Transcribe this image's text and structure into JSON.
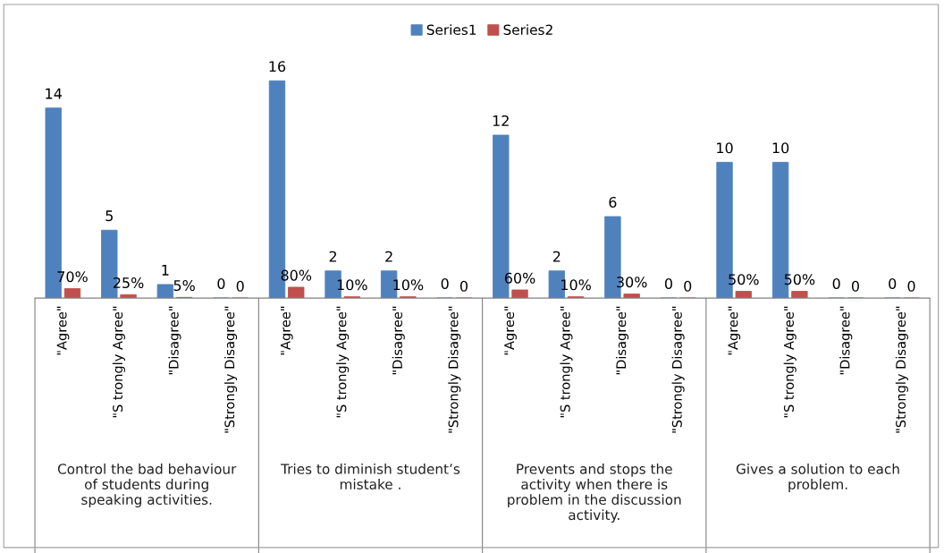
{
  "chart_data": {
    "type": "bar",
    "categories": [
      "\"Agree\"",
      "\"S trongly Agree\"",
      "\"Disagree\"",
      "\"Strongly Disagree\"",
      "\"Agree\"",
      "\"S trongly Agree\"",
      "\"Disagree\"",
      "\"Strongly Disagree\"",
      "\"Agree\"",
      "\"S trongly Agree\"",
      "\"Disagree\"",
      "\"Strongly Disagree\"",
      "\"Agree\"",
      "\"S trongly Agree\"",
      "\"Disagree\"",
      "\"Strongly Disagree\""
    ],
    "series": [
      {
        "name": "Series1",
        "color": "#4f81bd",
        "values": [
          14,
          5,
          1,
          0,
          16,
          2,
          2,
          0,
          12,
          2,
          6,
          0,
          10,
          10,
          0,
          0
        ],
        "value_labels": [
          "14",
          "5",
          "1",
          "0",
          "16",
          "2",
          "2",
          "0",
          "12",
          "2",
          "6",
          "0",
          "10",
          "10",
          "0",
          "0"
        ]
      },
      {
        "name": "Series2",
        "color": "#c0504d",
        "values": [
          0.7,
          0.25,
          0.05,
          0,
          0.8,
          0.1,
          0.1,
          0,
          0.6,
          0.1,
          0.3,
          0,
          0.5,
          0.5,
          0,
          0
        ],
        "value_labels": [
          "70%",
          "25%",
          "5%",
          "0",
          "80%",
          "10%",
          "10%",
          "0",
          "60%",
          "10%",
          "30%",
          "0",
          "50%",
          "50%",
          "0",
          "0"
        ]
      }
    ],
    "annotations": [
      "Control the bad behaviour\nof students during\nspeaking activities.",
      "Tries to diminish student’s\nmistake .",
      "Prevents and stops the\nactivity when there is\nproblem in the discussion\nactivity.",
      "Gives a solution to each\nproblem."
    ],
    "legend": "top",
    "grid": false
  }
}
